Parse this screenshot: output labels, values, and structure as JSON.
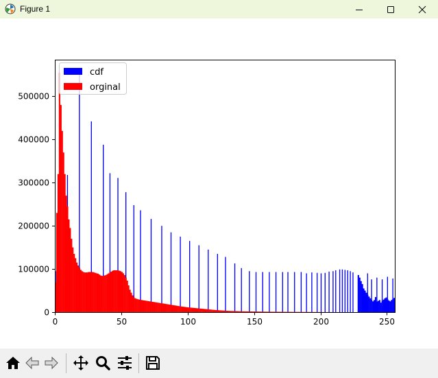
{
  "window": {
    "title": "Figure 1"
  },
  "toolbar": {
    "buttons": [
      "home-icon",
      "back-icon",
      "forward-icon",
      "pan-icon",
      "zoom-icon",
      "configure-subplots-icon",
      "save-icon"
    ]
  },
  "chart_data": {
    "type": "bar",
    "title": "",
    "xlabel": "",
    "ylabel": "",
    "xlim": [
      0,
      256
    ],
    "ylim": [
      0,
      585000
    ],
    "xticks": [
      0,
      50,
      100,
      150,
      200,
      250
    ],
    "yticks": [
      0,
      100000,
      200000,
      300000,
      400000,
      500000
    ],
    "xtick_labels": [
      "0",
      "50",
      "100",
      "150",
      "200",
      "250"
    ],
    "ytick_labels": [
      "0",
      "100000",
      "200000",
      "300000",
      "400000",
      "500000"
    ],
    "grid": false,
    "legend": {
      "placement": "top-left",
      "entries": [
        "cdf",
        "orginal"
      ]
    },
    "series": [
      {
        "name": "cdf",
        "color": "#0000ff",
        "bin_width": 1,
        "spikes": [
          [
            0,
            95000
          ],
          [
            9,
            318000
          ],
          [
            18,
            555000
          ],
          [
            27,
            442000
          ],
          [
            36,
            388000
          ],
          [
            41,
            322000
          ],
          [
            47,
            311000
          ],
          [
            53,
            278000
          ],
          [
            59,
            248000
          ],
          [
            64,
            236000
          ],
          [
            72,
            216000
          ],
          [
            80,
            200000
          ],
          [
            87,
            185000
          ],
          [
            94,
            175000
          ],
          [
            101,
            165000
          ],
          [
            108,
            155000
          ],
          [
            115,
            145000
          ],
          [
            122,
            135000
          ],
          [
            128,
            128000
          ],
          [
            135,
            113000
          ],
          [
            140,
            102000
          ],
          [
            146,
            95000
          ],
          [
            151,
            93000
          ],
          [
            156,
            93000
          ],
          [
            161,
            93000
          ],
          [
            166,
            93000
          ],
          [
            171,
            93000
          ],
          [
            175,
            93000
          ],
          [
            180,
            93000
          ],
          [
            185,
            93000
          ],
          [
            189,
            90000
          ],
          [
            193,
            92000
          ],
          [
            197,
            91000
          ],
          [
            200,
            90000
          ],
          [
            203,
            91000
          ],
          [
            206,
            94000
          ],
          [
            209,
            95000
          ],
          [
            211,
            97000
          ],
          [
            214,
            99000
          ],
          [
            216,
            99000
          ],
          [
            218,
            98000
          ],
          [
            220,
            97000
          ],
          [
            222,
            95000
          ],
          [
            224,
            92000
          ],
          [
            235,
            90000
          ],
          [
            238,
            76000
          ],
          [
            242,
            80000
          ],
          [
            246,
            76000
          ],
          [
            250,
            82000
          ],
          [
            254,
            78000
          ]
        ],
        "block": {
          "x_start": 228,
          "values": [
            86000,
            80000,
            72000,
            65000,
            55000,
            50000,
            45000,
            40000,
            36000,
            32000,
            28000,
            25000,
            28000,
            35000,
            24000,
            26000,
            28000,
            22000,
            26000,
            29000,
            32000,
            34000,
            30000,
            27000,
            25000,
            28000,
            30000,
            33000
          ]
        }
      },
      {
        "name": "orginal",
        "color": "#ff0000",
        "bin_width": 1,
        "values": [
          68000,
          230000,
          320000,
          555000,
          480000,
          420000,
          370000,
          320000,
          270000,
          245000,
          215000,
          195000,
          170000,
          150000,
          135000,
          125000,
          115000,
          108000,
          103000,
          98000,
          95000,
          93000,
          92000,
          92000,
          92000,
          93000,
          93000,
          93000,
          93000,
          92000,
          91000,
          90000,
          89000,
          87000,
          85000,
          84000,
          84000,
          85000,
          86000,
          88000,
          90000,
          92000,
          94000,
          96000,
          97000,
          97000,
          97000,
          97000,
          96000,
          95000,
          93000,
          90000,
          86000,
          80000,
          73000,
          62000,
          52000,
          45000,
          39000,
          35000,
          32000,
          31000,
          30000,
          29000,
          28500,
          28000,
          27500,
          27000,
          26500,
          26000,
          25500,
          25000,
          24500,
          24000,
          23500,
          23000,
          22500,
          22000,
          21500,
          21000,
          20500,
          20000,
          19500,
          19000,
          18500,
          18000,
          17500,
          17000,
          16500,
          16000,
          15500,
          15000,
          14500,
          14000,
          13500,
          13000,
          12600,
          12200,
          11800,
          11400,
          11000,
          10700,
          10400,
          10100,
          9800,
          9500,
          9200,
          8900,
          8600,
          8300,
          8000,
          7700,
          7400,
          7100,
          6800,
          6500,
          6200,
          5900,
          5600,
          5300,
          5000,
          4800,
          4600,
          4400,
          4200,
          4000,
          3800,
          3600,
          3400,
          3200,
          3000,
          2900,
          2800,
          2700,
          2600,
          2500,
          2400,
          2300,
          2200,
          2100,
          2000,
          1950,
          1900,
          1850,
          1800,
          1750,
          1700,
          1650,
          1600,
          1550,
          1500,
          1450,
          1400,
          1350,
          1300,
          1250,
          1200,
          1150,
          1100,
          1050,
          1000,
          980,
          960,
          940,
          920,
          900,
          880,
          860,
          840,
          820,
          800,
          780,
          760,
          740,
          720,
          700,
          680,
          660,
          640,
          620,
          600,
          580,
          560,
          540,
          520,
          500,
          480,
          460,
          440,
          420,
          400,
          380,
          360,
          340,
          320,
          300,
          280,
          260,
          240,
          220,
          200,
          190,
          180,
          170,
          160,
          150,
          140,
          130,
          120,
          110,
          100,
          95,
          90,
          85,
          80,
          75,
          70,
          65,
          60,
          55,
          50,
          45,
          40,
          35,
          30,
          25,
          20,
          15,
          10,
          5,
          0,
          0,
          0,
          0,
          0,
          0,
          0,
          0,
          0,
          0,
          0,
          0,
          0,
          0,
          0,
          0,
          0,
          0,
          0,
          0,
          0,
          0,
          0,
          0,
          0,
          0
        ]
      }
    ]
  }
}
